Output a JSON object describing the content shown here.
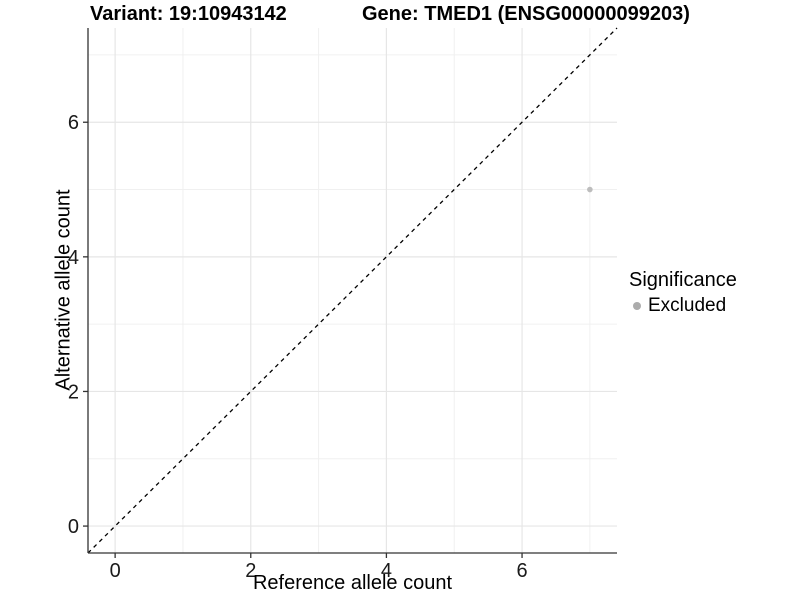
{
  "chart_data": {
    "type": "scatter",
    "variant_title": "Variant: 19:10943142",
    "gene_title": "Gene: TMED1 (ENSG00000099203)",
    "xlabel": "Reference allele count",
    "ylabel": "Alternative allele count",
    "xlim": [
      -0.4,
      7.4
    ],
    "ylim": [
      -0.4,
      7.4
    ],
    "x_major_ticks": [
      0,
      2,
      4,
      6
    ],
    "y_major_ticks": [
      0,
      2,
      4,
      6
    ],
    "x_minor_ticks": [
      1,
      3,
      5,
      7
    ],
    "y_minor_ticks": [
      1,
      3,
      5,
      7
    ],
    "grid": true,
    "reference_line": {
      "type": "identity",
      "style": "dashed",
      "from": [
        -0.4,
        -0.4
      ],
      "to": [
        7.4,
        7.4
      ],
      "color": "#000000"
    },
    "series": [
      {
        "name": "Excluded",
        "color": "#bdbdbd",
        "point_radius": 2.8,
        "points": [
          {
            "x": 7,
            "y": 5
          }
        ]
      }
    ],
    "legend": {
      "position": "right",
      "title": "Significance",
      "entries": [
        {
          "label": "Excluded",
          "color": "#acacac"
        }
      ]
    },
    "colors": {
      "background": "#ffffff",
      "grid_major": "#e6e6e6",
      "grid_minor": "#f0f0f0",
      "axis_line": "#333333",
      "tick_mark": "#333333",
      "tick_text": "#1a1a1a"
    }
  }
}
